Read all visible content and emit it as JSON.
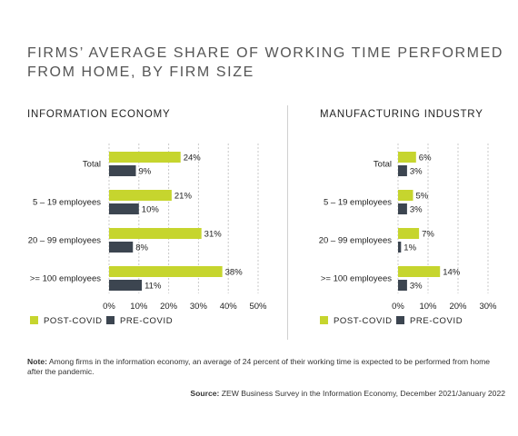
{
  "title_lines": [
    "FIRMS’ AVERAGE SHARE OF WORKING TIME PERFORMED",
    "FROM HOME, BY FIRM SIZE"
  ],
  "colors": {
    "post": "#c6d52e",
    "pre": "#3c4550",
    "grid": "#c8c8c8",
    "text": "#222222"
  },
  "chart_data": [
    {
      "type": "bar",
      "orientation": "horizontal",
      "title": "INFORMATION ECONOMY",
      "categories": [
        "Total",
        "5 – 19 employees",
        "20 – 99 employees",
        ">= 100 employees"
      ],
      "series": [
        {
          "name": "POST-COVID",
          "values": [
            24,
            21,
            31,
            38
          ],
          "labels": [
            "24%",
            "21%",
            "31%",
            "38%"
          ]
        },
        {
          "name": "PRE-COVID",
          "values": [
            9,
            10,
            8,
            11
          ],
          "labels": [
            "9%",
            "10%",
            "8%",
            "11%"
          ]
        }
      ],
      "xlim": [
        0,
        50
      ],
      "xticks": [
        0,
        10,
        20,
        30,
        40,
        50
      ],
      "xtick_labels": [
        "0%",
        "10%",
        "20%",
        "30%",
        "40%",
        "50%"
      ],
      "grid": true,
      "legend": "bottom-left"
    },
    {
      "type": "bar",
      "orientation": "horizontal",
      "title": "MANUFACTURING INDUSTRY",
      "categories": [
        "Total",
        "5 – 19 employees",
        "20 – 99 employees",
        ">= 100 employees"
      ],
      "series": [
        {
          "name": "POST-COVID",
          "values": [
            6,
            5,
            7,
            14
          ],
          "labels": [
            "6%",
            "5%",
            "7%",
            "14%"
          ]
        },
        {
          "name": "PRE-COVID",
          "values": [
            3,
            3,
            1,
            3
          ],
          "labels": [
            "3%",
            "3%",
            "1%",
            "3%"
          ]
        }
      ],
      "xlim": [
        0,
        30
      ],
      "xticks": [
        0,
        10,
        20,
        30
      ],
      "xtick_labels": [
        "0%",
        "10%",
        "20%",
        "30%"
      ],
      "grid": true,
      "legend": "bottom-left"
    }
  ],
  "note": {
    "label": "Note:",
    "text": "Among firms in the information economy, an average of 24 percent of their working time is expected to be performed from home after the pandemic."
  },
  "source": {
    "label": "Source:",
    "text": "ZEW Business Survey in the Information Economy, December 2021/January 2022"
  }
}
